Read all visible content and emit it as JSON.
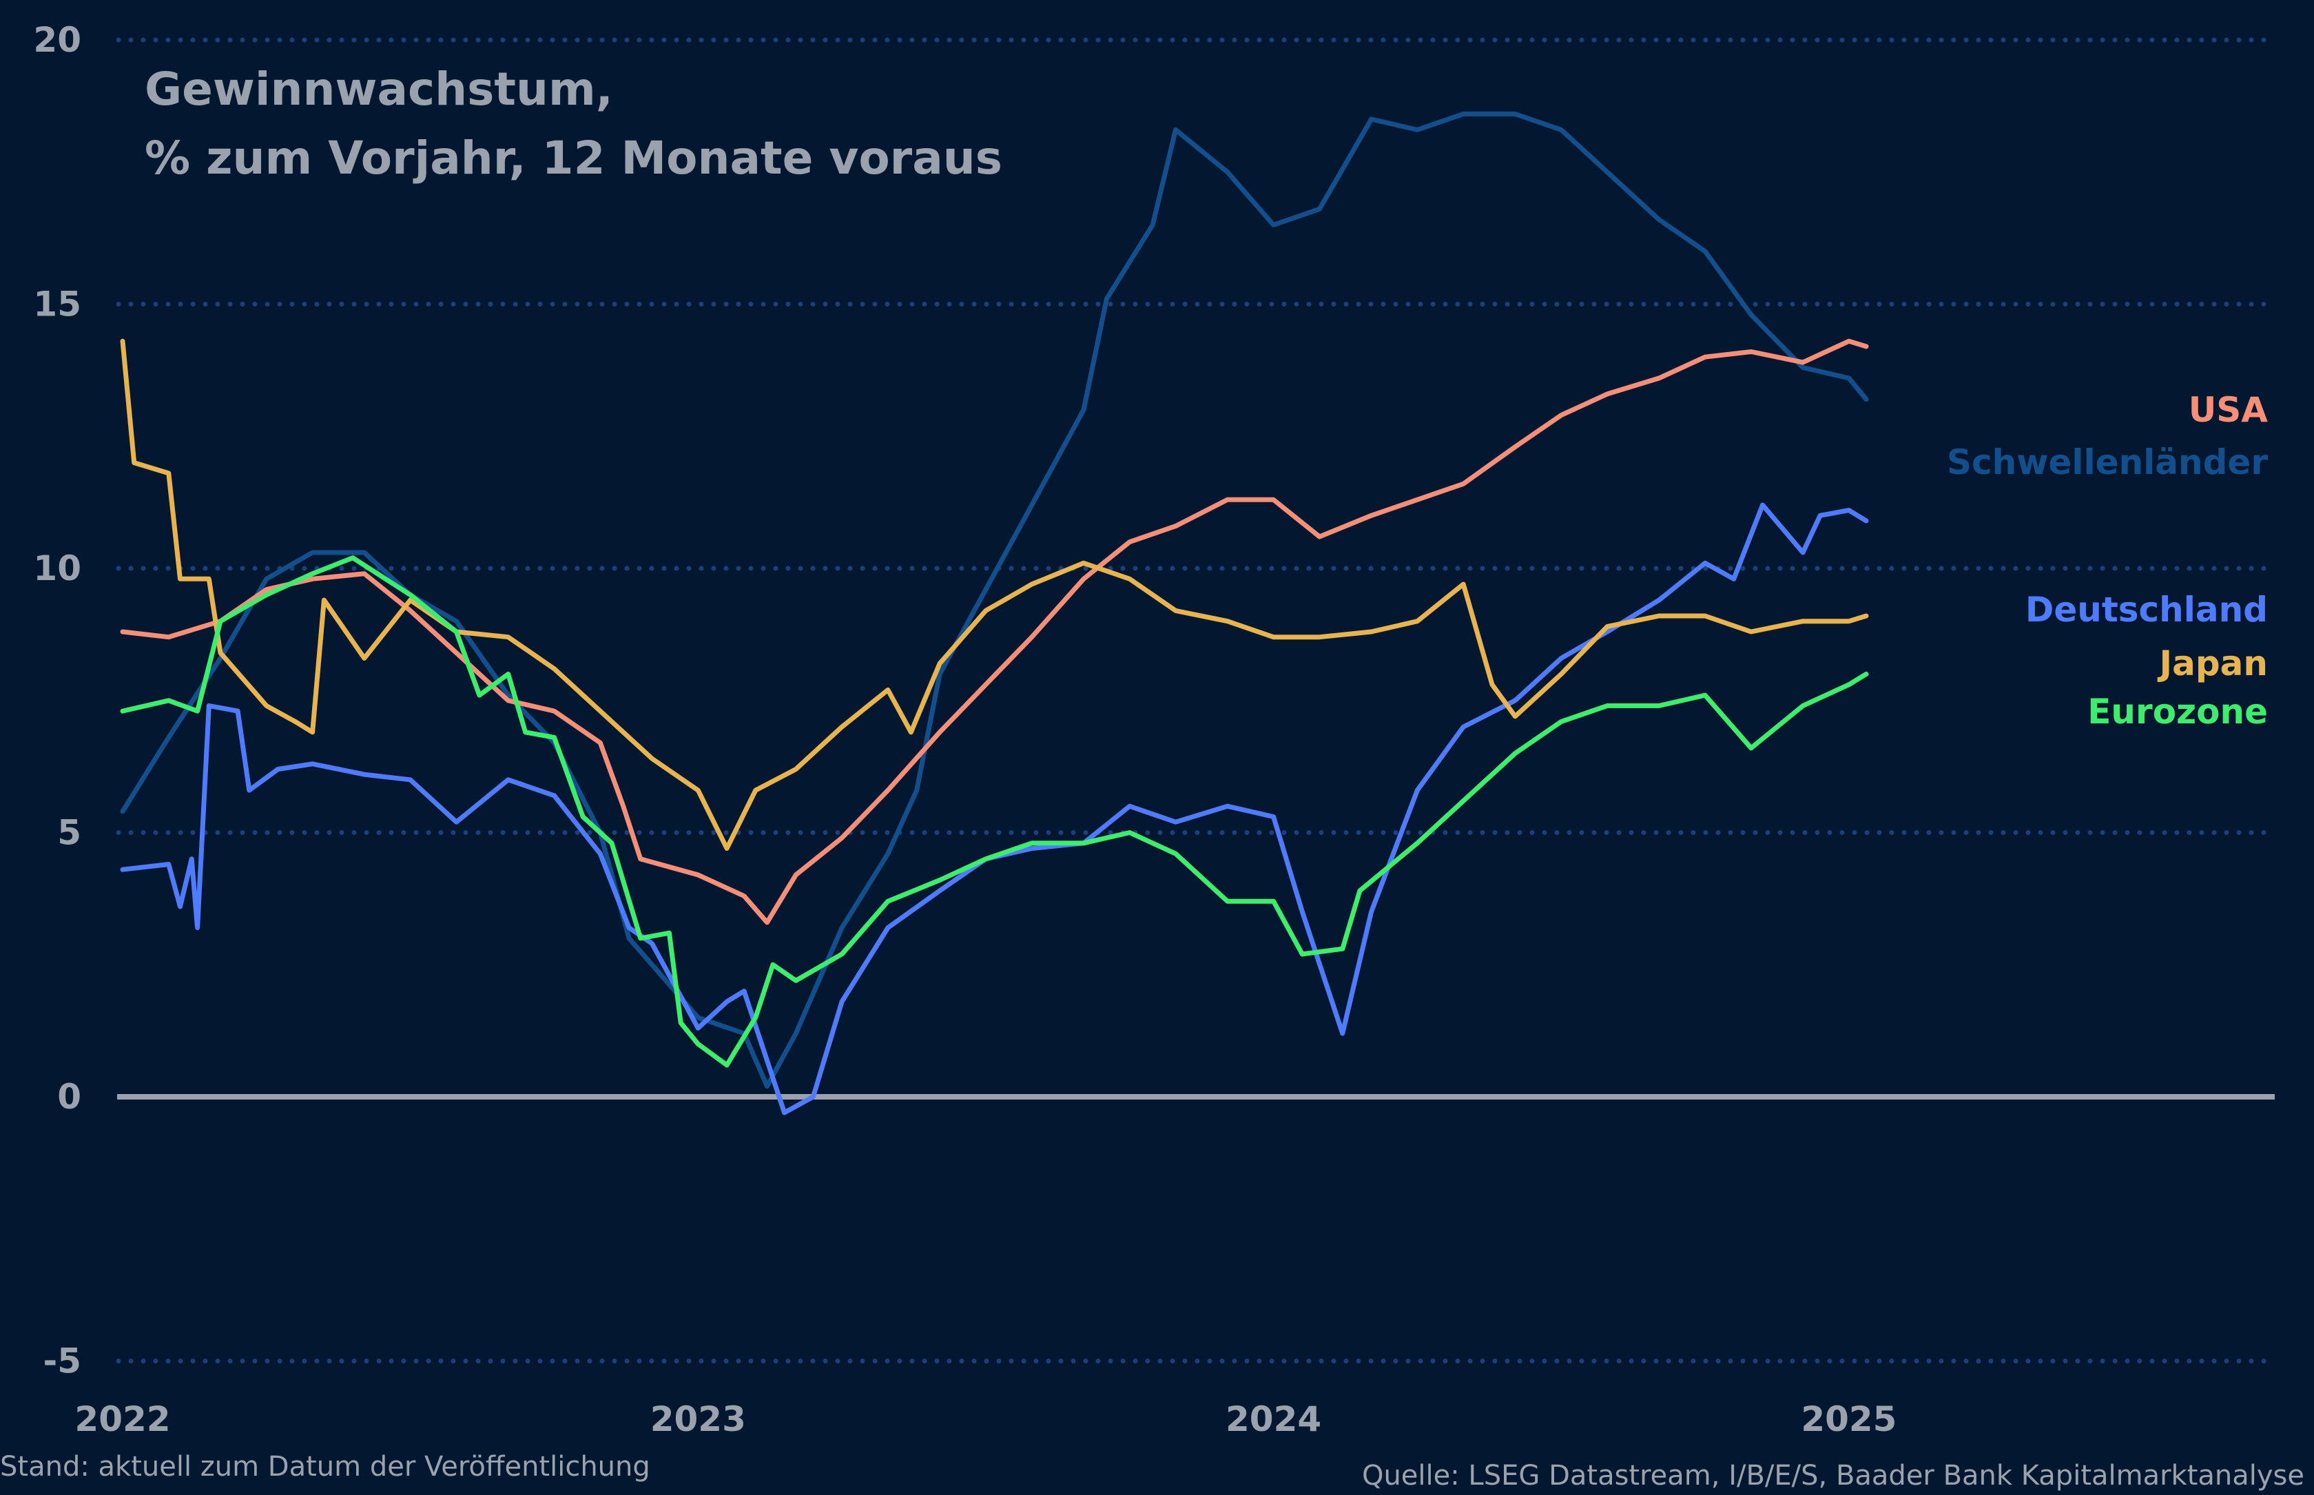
{
  "chart_data": {
    "type": "line",
    "title": [
      "Gewinnwachstum,",
      "% zum Vorjahr, 12 Monate voraus"
    ],
    "xlabel": "",
    "ylabel": "",
    "xlim": [
      2022,
      2025.74
    ],
    "ylim": [
      -5,
      20
    ],
    "yticks": [
      20,
      15,
      10,
      5,
      0,
      -5
    ],
    "xticks": [
      2022,
      2023,
      2024,
      2025
    ],
    "grid": "horizontal dotted",
    "legend_placement": "right",
    "zero_line_color": "#9aa3ad",
    "series": [
      {
        "name": "USA",
        "color": "#f58f78",
        "x": [
          2022.0,
          2022.08,
          2022.17,
          2022.25,
          2022.33,
          2022.42,
          2022.5,
          2022.58,
          2022.67,
          2022.75,
          2022.83,
          2022.87,
          2022.9,
          2023.0,
          2023.08,
          2023.12,
          2023.17,
          2023.25,
          2023.33,
          2023.42,
          2023.5,
          2023.58,
          2023.67,
          2023.75,
          2023.83,
          2023.92,
          2024.0,
          2024.08,
          2024.17,
          2024.25,
          2024.33,
          2024.42,
          2024.5,
          2024.58,
          2024.67,
          2024.75,
          2024.83,
          2024.92,
          2025.0,
          2025.03
        ],
        "y": [
          8.8,
          8.7,
          9.0,
          9.6,
          9.8,
          9.9,
          9.2,
          8.4,
          7.5,
          7.3,
          6.7,
          5.5,
          4.5,
          4.2,
          3.8,
          3.3,
          4.2,
          4.9,
          5.8,
          6.9,
          7.8,
          8.7,
          9.8,
          10.5,
          10.8,
          11.3,
          11.3,
          10.6,
          11.0,
          11.3,
          11.6,
          12.3,
          12.9,
          13.3,
          13.6,
          14.0,
          14.1,
          13.9,
          14.3,
          14.2
        ]
      },
      {
        "name": "Schwellenländer",
        "color": "#134f8c",
        "x": [
          2022.0,
          2022.08,
          2022.17,
          2022.25,
          2022.33,
          2022.42,
          2022.5,
          2022.58,
          2022.67,
          2022.75,
          2022.83,
          2022.88,
          2022.92,
          2023.0,
          2023.08,
          2023.12,
          2023.17,
          2023.25,
          2023.33,
          2023.38,
          2023.42,
          2023.5,
          2023.58,
          2023.67,
          2023.71,
          2023.79,
          2023.83,
          2023.92,
          2024.0,
          2024.08,
          2024.17,
          2024.25,
          2024.33,
          2024.42,
          2024.5,
          2024.58,
          2024.67,
          2024.75,
          2024.83,
          2024.92,
          2025.0,
          2025.03
        ],
        "y": [
          5.4,
          6.8,
          8.3,
          9.8,
          10.3,
          10.3,
          9.5,
          9.0,
          7.6,
          6.7,
          5.0,
          3.0,
          2.5,
          1.5,
          1.2,
          0.2,
          1.2,
          3.2,
          4.6,
          5.8,
          8.0,
          9.6,
          11.2,
          13.0,
          15.1,
          16.5,
          18.3,
          17.5,
          16.5,
          16.8,
          18.5,
          18.3,
          18.6,
          18.6,
          18.3,
          17.5,
          16.6,
          16.0,
          14.8,
          13.8,
          13.6,
          13.2
        ]
      },
      {
        "name": "Deutschland",
        "color": "#4f7bff",
        "x": [
          2022.0,
          2022.08,
          2022.1,
          2022.12,
          2022.13,
          2022.15,
          2022.2,
          2022.22,
          2022.27,
          2022.33,
          2022.42,
          2022.5,
          2022.58,
          2022.67,
          2022.75,
          2022.83,
          2022.88,
          2022.92,
          2023.0,
          2023.05,
          2023.08,
          2023.15,
          2023.2,
          2023.25,
          2023.33,
          2023.42,
          2023.5,
          2023.58,
          2023.67,
          2023.75,
          2023.83,
          2023.92,
          2024.0,
          2024.05,
          2024.12,
          2024.17,
          2024.25,
          2024.33,
          2024.42,
          2024.5,
          2024.58,
          2024.67,
          2024.75,
          2024.8,
          2024.85,
          2024.92,
          2024.95,
          2025.0,
          2025.03
        ],
        "y": [
          4.3,
          4.4,
          3.6,
          4.5,
          3.2,
          7.4,
          7.3,
          5.8,
          6.2,
          6.3,
          6.1,
          6.0,
          5.2,
          6.0,
          5.7,
          4.6,
          3.2,
          2.9,
          1.3,
          1.8,
          2.0,
          -0.3,
          0.0,
          1.8,
          3.2,
          3.9,
          4.5,
          4.7,
          4.8,
          5.5,
          5.2,
          5.5,
          5.3,
          3.5,
          1.2,
          3.5,
          5.8,
          7.0,
          7.5,
          8.3,
          8.8,
          9.4,
          10.1,
          9.8,
          11.2,
          10.3,
          11.0,
          11.1,
          10.9
        ]
      },
      {
        "name": "Japan",
        "color": "#e8b44f",
        "x": [
          2022.0,
          2022.02,
          2022.08,
          2022.1,
          2022.15,
          2022.17,
          2022.25,
          2022.3,
          2022.33,
          2022.35,
          2022.42,
          2022.5,
          2022.58,
          2022.67,
          2022.75,
          2022.83,
          2022.92,
          2023.0,
          2023.05,
          2023.1,
          2023.17,
          2023.25,
          2023.33,
          2023.37,
          2023.42,
          2023.5,
          2023.58,
          2023.67,
          2023.75,
          2023.83,
          2023.92,
          2024.0,
          2024.08,
          2024.17,
          2024.25,
          2024.33,
          2024.38,
          2024.42,
          2024.5,
          2024.58,
          2024.67,
          2024.75,
          2024.83,
          2024.92,
          2025.0,
          2025.03
        ],
        "y": [
          14.3,
          12.0,
          11.8,
          9.8,
          9.8,
          8.4,
          7.4,
          7.1,
          6.9,
          9.4,
          8.3,
          9.4,
          8.8,
          8.7,
          8.1,
          7.3,
          6.4,
          5.8,
          4.7,
          5.8,
          6.2,
          7.0,
          7.7,
          6.9,
          8.2,
          9.2,
          9.7,
          10.1,
          9.8,
          9.2,
          9.0,
          8.7,
          8.7,
          8.8,
          9.0,
          9.7,
          7.8,
          7.2,
          8.0,
          8.9,
          9.1,
          9.1,
          8.8,
          9.0,
          9.0,
          9.1
        ]
      },
      {
        "name": "Eurozone",
        "color": "#3ded6b",
        "x": [
          2022.0,
          2022.08,
          2022.13,
          2022.17,
          2022.25,
          2022.33,
          2022.4,
          2022.5,
          2022.58,
          2022.62,
          2022.67,
          2022.7,
          2022.75,
          2022.8,
          2022.85,
          2022.9,
          2022.95,
          2022.97,
          2023.0,
          2023.05,
          2023.1,
          2023.13,
          2023.17,
          2023.25,
          2023.33,
          2023.42,
          2023.5,
          2023.58,
          2023.67,
          2023.75,
          2023.83,
          2023.92,
          2024.0,
          2024.05,
          2024.12,
          2024.15,
          2024.25,
          2024.33,
          2024.42,
          2024.5,
          2024.58,
          2024.67,
          2024.75,
          2024.83,
          2024.92,
          2025.0,
          2025.03
        ],
        "y": [
          7.3,
          7.5,
          7.3,
          9.0,
          9.5,
          9.9,
          10.2,
          9.5,
          8.8,
          7.6,
          8.0,
          6.9,
          6.8,
          5.3,
          4.8,
          3.0,
          3.1,
          1.4,
          1.0,
          0.6,
          1.5,
          2.5,
          2.2,
          2.7,
          3.7,
          4.1,
          4.5,
          4.8,
          4.8,
          5.0,
          4.6,
          3.7,
          3.7,
          2.7,
          2.8,
          3.9,
          4.8,
          5.6,
          6.5,
          7.1,
          7.4,
          7.4,
          7.6,
          6.6,
          7.4,
          7.8,
          8.0
        ]
      }
    ]
  },
  "footer": {
    "left": "Stand: aktuell zum Datum der Veröffentlichung",
    "right": "Quelle: LSEG Datastream, I/B/E/S, Baader Bank Kapitalmarktanalyse"
  }
}
